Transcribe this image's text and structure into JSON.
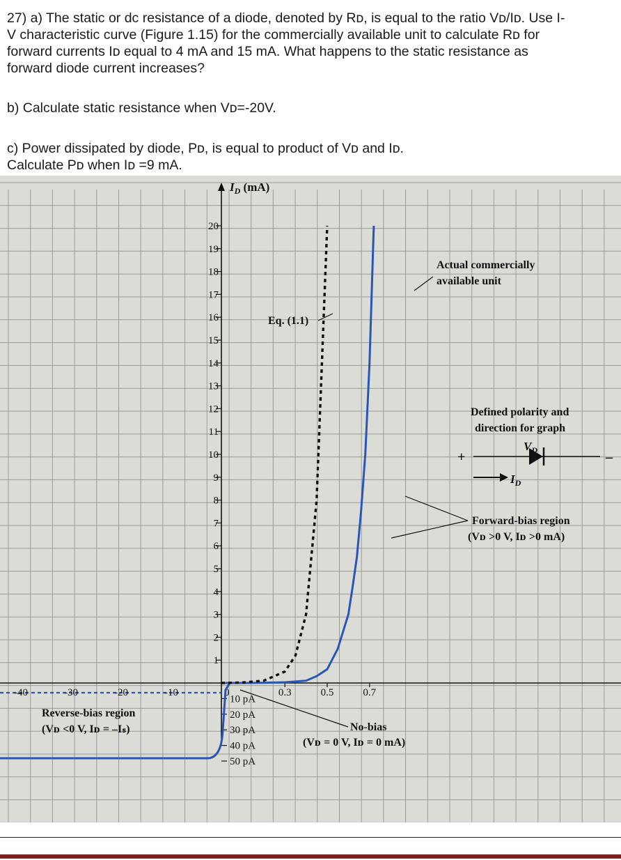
{
  "questions": {
    "a": {
      "line1": "27) a) The static or dc resistance of a diode, denoted by Rᴅ, is equal to the ratio Vᴅ/Iᴅ. Use I-",
      "line2": "V characteristic curve (Figure 1.15) for the commercially available unit to calculate Rᴅ for",
      "line3": "forward currents Iᴅ equal to 4 mA and 15 mA. What happens to the static resistance as",
      "line4": "forward diode current increases?"
    },
    "b": {
      "line1": "b) Calculate static resistance when Vᴅ=-20V."
    },
    "c": {
      "line1": "c) Power dissipated by diode, Pᴅ, is equal to product of Vᴅ and Iᴅ.",
      "line2": "Calculate Pᴅ when Iᴅ =9 mA."
    }
  },
  "chart_data": {
    "type": "line",
    "ylabel": "I_D (mA)",
    "y_ticks": [
      1,
      2,
      3,
      4,
      5,
      6,
      7,
      8,
      9,
      10,
      11,
      12,
      13,
      14,
      15,
      16,
      17,
      18,
      19,
      20
    ],
    "x_ticks_negative": [
      "-40",
      "-30",
      "-20",
      "-10"
    ],
    "x_ticks_positive": [
      "0.3",
      "0.5",
      "0.7"
    ],
    "origin_label": "0",
    "reverse_ticks": [
      "10 pA",
      "20 pA",
      "30 pA",
      "40 pA",
      "50 pA"
    ],
    "series": [
      {
        "name": "Actual commercially available unit",
        "x": [
          0,
          0.1,
          0.2,
          0.3,
          0.4,
          0.45,
          0.5,
          0.55,
          0.6,
          0.62,
          0.64,
          0.66,
          0.68,
          0.7,
          0.72
        ],
        "y": [
          0,
          0.0,
          0.01,
          0.03,
          0.1,
          0.3,
          0.6,
          1.5,
          3.0,
          4.2,
          5.5,
          7.5,
          10,
          14,
          20
        ]
      },
      {
        "name": "Eq. (1.1)",
        "x": [
          0,
          0.1,
          0.2,
          0.3,
          0.35,
          0.4,
          0.45,
          0.5
        ],
        "y": [
          0,
          0.02,
          0.1,
          0.5,
          1.2,
          3.0,
          8,
          20
        ]
      }
    ],
    "annotations": {
      "actual_line1": "Actual commercially",
      "actual_line2": "available unit",
      "eq": "Eq. (1.1)",
      "polarity_line1": "Defined polarity and",
      "polarity_line2": "direction for graph",
      "plus": "+",
      "minus": "–",
      "vd": "V",
      "vd_sub": "D",
      "id": "I",
      "id_sub": "D",
      "forward_line1": "Forward-bias region",
      "forward_line2": "(Vᴅ >0 V, Iᴅ >0 mA)",
      "reverse_line1": "Reverse-bias region",
      "reverse_line2": "(Vᴅ <0 V, Iᴅ = –Iₛ)",
      "nobias_line1": "No-bias",
      "nobias_line2": "(Vᴅ = 0 V, Iᴅ = 0 mA)"
    },
    "colors": {
      "curve": "#2a55b8",
      "grid": "#9a9a9a",
      "paper": "#dcdcd6"
    }
  }
}
